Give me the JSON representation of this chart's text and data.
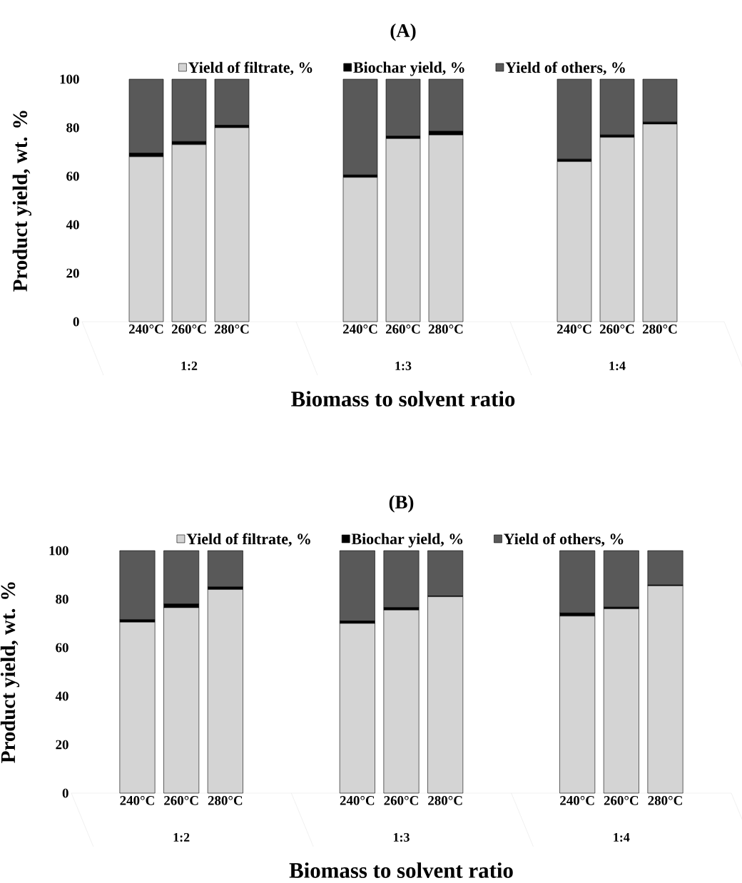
{
  "chart_data": [
    {
      "type": "bar",
      "title": "(A)",
      "xlabel": "Biomass to solvent ratio",
      "ylabel": "Product yield, wt. %",
      "stacked": true,
      "legend": "top",
      "categories": [
        null,
        "240°C",
        "260°C",
        "280°C",
        null,
        null,
        "240°C",
        "260°C",
        "280°C",
        null,
        null,
        "240°C",
        "260°C",
        "280°C",
        null
      ],
      "annotations": [
        "1:2",
        "1:3",
        "1:4"
      ],
      "series": [
        {
          "name": "Yield of filtrate, %",
          "color": "#d4d4d4",
          "values": [
            null,
            68,
            73,
            80,
            null,
            null,
            59.5,
            75.5,
            77,
            null,
            null,
            66,
            76,
            81.5,
            null
          ]
        },
        {
          "name": "Biochar yield, %",
          "color": "#000000",
          "values": [
            null,
            1.5,
            1.3,
            1,
            null,
            null,
            1,
            1,
            1.5,
            null,
            null,
            1,
            1,
            0.8,
            null
          ]
        },
        {
          "name": "Yield of others, %",
          "color": "#595959",
          "values": [
            null,
            30.5,
            25.7,
            19,
            null,
            null,
            39.5,
            23.5,
            21.5,
            null,
            null,
            33,
            23,
            17.7,
            null
          ]
        }
      ],
      "ylim": [
        0,
        100
      ],
      "yticks": [
        0,
        20,
        40,
        60,
        80,
        100
      ]
    },
    {
      "type": "bar",
      "title": "(B)",
      "xlabel": "Biomass to solvent ratio",
      "ylabel": "Product yield, wt. %",
      "stacked": true,
      "legend": "top",
      "categories": [
        null,
        "240°C",
        "260°C",
        "280°C",
        null,
        null,
        "240°C",
        "260°C",
        "280°C",
        null,
        null,
        "240°C",
        "260°C",
        "280°C",
        null
      ],
      "annotations": [
        "1:2",
        "1:3",
        "1:4"
      ],
      "series": [
        {
          "name": "Yield of filtrate, %",
          "color": "#d4d4d4",
          "values": [
            null,
            70.5,
            76.5,
            84,
            null,
            null,
            70,
            75.5,
            81,
            null,
            null,
            73,
            76,
            85.5,
            null
          ]
        },
        {
          "name": "Biochar yield, %",
          "color": "#000000",
          "values": [
            null,
            1,
            1.5,
            1,
            null,
            null,
            1,
            1,
            0.3,
            null,
            null,
            1.3,
            0.7,
            0.3,
            null
          ]
        },
        {
          "name": "Yield of others, %",
          "color": "#595959",
          "values": [
            null,
            28.5,
            22,
            15,
            null,
            null,
            29,
            23.5,
            18.7,
            null,
            null,
            25.7,
            23.3,
            14.2,
            null
          ]
        }
      ],
      "ylim": [
        0,
        100
      ],
      "yticks": [
        0,
        20,
        40,
        60,
        80,
        100
      ]
    }
  ]
}
